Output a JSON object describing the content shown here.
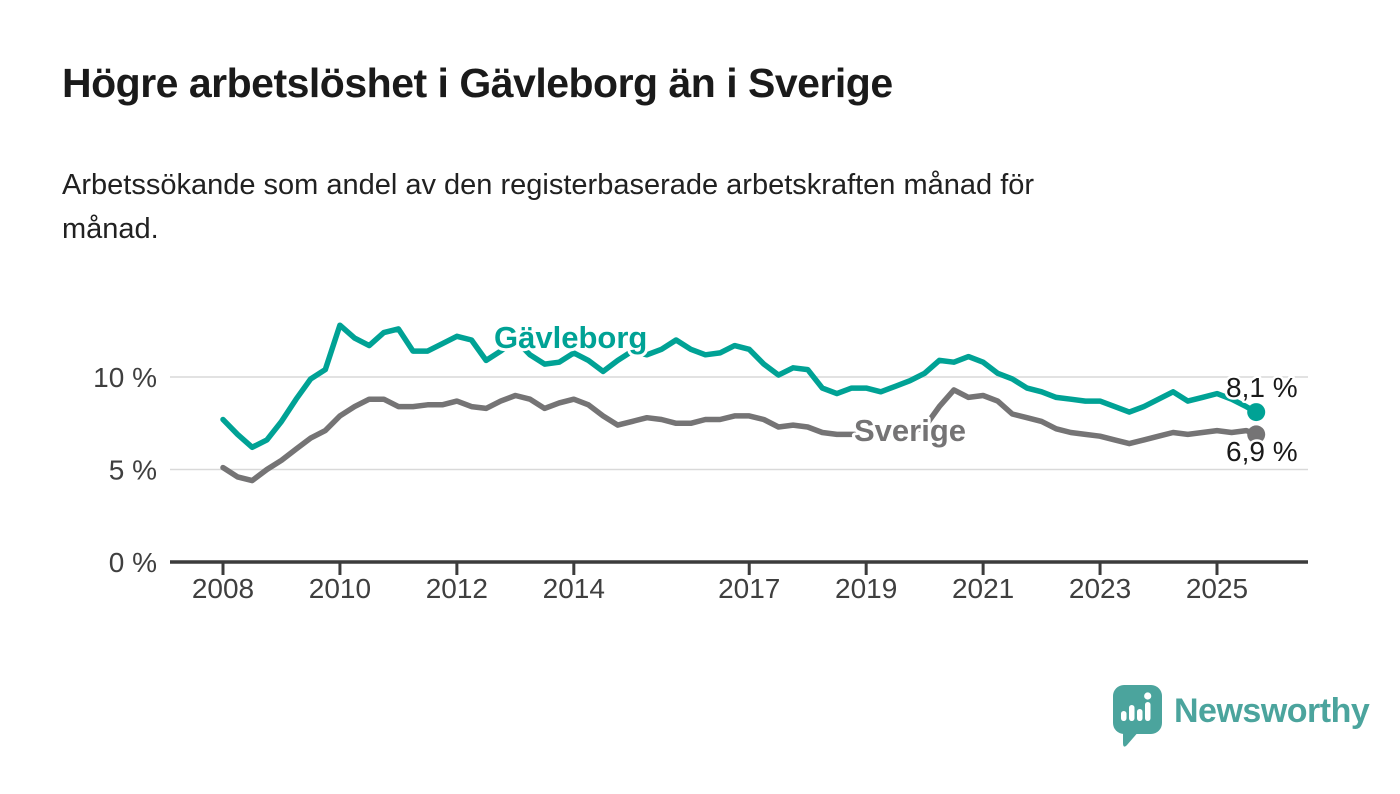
{
  "header": {
    "title": "Högre arbetslöshet i Gävleborg än i Sverige",
    "subtitle": "Arbetssökande som andel av den registerbaserade arbetskraften månad för månad."
  },
  "chart_data": {
    "type": "line",
    "x_unit": "decimal_year_monthly_series",
    "x_range_visible": [
      2007.1,
      2026.6
    ],
    "ylim": [
      0,
      13.5
    ],
    "grid": "horizontal gridlines at 5% and 10%, dark baseline at 0%",
    "legend_position": "inline labels beside lines, end-value labels at right",
    "yticks": [
      {
        "value": 0,
        "label": "0 %"
      },
      {
        "value": 5,
        "label": "5 %"
      },
      {
        "value": 10,
        "label": "10 %"
      }
    ],
    "gridlines": [
      5,
      10
    ],
    "xticks": [
      {
        "value": 2008,
        "label": "2008"
      },
      {
        "value": 2010,
        "label": "2010"
      },
      {
        "value": 2012,
        "label": "2012"
      },
      {
        "value": 2014,
        "label": "2014"
      },
      {
        "value": 2017,
        "label": "2017"
      },
      {
        "value": 2019,
        "label": "2019"
      },
      {
        "value": 2021,
        "label": "2021"
      },
      {
        "value": 2023,
        "label": "2023"
      },
      {
        "value": 2025,
        "label": "2025"
      }
    ],
    "x": [
      2008.0,
      2008.25,
      2008.5,
      2008.75,
      2009.0,
      2009.25,
      2009.5,
      2009.75,
      2010.0,
      2010.25,
      2010.5,
      2010.75,
      2011.0,
      2011.25,
      2011.5,
      2011.75,
      2012.0,
      2012.25,
      2012.5,
      2012.75,
      2013.0,
      2013.25,
      2013.5,
      2013.75,
      2014.0,
      2014.25,
      2014.5,
      2014.75,
      2015.0,
      2015.25,
      2015.5,
      2015.75,
      2016.0,
      2016.25,
      2016.5,
      2016.75,
      2017.0,
      2017.25,
      2017.5,
      2017.75,
      2018.0,
      2018.25,
      2018.5,
      2018.75,
      2019.0,
      2019.25,
      2019.5,
      2019.75,
      2020.0,
      2020.25,
      2020.5,
      2020.75,
      2021.0,
      2021.25,
      2021.5,
      2021.75,
      2022.0,
      2022.25,
      2022.5,
      2022.75,
      2023.0,
      2023.25,
      2023.5,
      2023.75,
      2024.0,
      2024.25,
      2024.5,
      2024.75,
      2025.0,
      2025.25,
      2025.5,
      2025.67
    ],
    "series": [
      {
        "name": "Gävleborg",
        "color": "#00a295",
        "end_label": "8,1 %",
        "last_value_pct": 8.1,
        "end_marker": "dot",
        "values": [
          7.7,
          6.9,
          6.2,
          6.6,
          7.6,
          8.8,
          9.9,
          10.4,
          12.8,
          12.1,
          11.7,
          12.4,
          12.6,
          11.4,
          11.4,
          11.8,
          12.2,
          12.0,
          10.9,
          11.4,
          12.0,
          11.2,
          10.7,
          10.8,
          11.3,
          10.9,
          10.3,
          10.9,
          11.4,
          11.2,
          11.5,
          12.0,
          11.5,
          11.2,
          11.3,
          11.7,
          11.5,
          10.7,
          10.1,
          10.5,
          10.4,
          9.4,
          9.1,
          9.4,
          9.4,
          9.2,
          9.5,
          9.8,
          10.2,
          10.9,
          10.8,
          11.1,
          10.8,
          10.2,
          9.9,
          9.4,
          9.2,
          8.9,
          8.8,
          8.7,
          8.7,
          8.4,
          8.1,
          8.4,
          8.8,
          9.2,
          8.7,
          8.9,
          9.1,
          8.8,
          8.4,
          8.1
        ]
      },
      {
        "name": "Sverige",
        "color": "#757475",
        "end_label": "6,9 %",
        "last_value_pct": 6.9,
        "end_marker": "dot",
        "values": [
          5.1,
          4.6,
          4.4,
          5.0,
          5.5,
          6.1,
          6.7,
          7.1,
          7.9,
          8.4,
          8.8,
          8.8,
          8.4,
          8.4,
          8.5,
          8.5,
          8.7,
          8.4,
          8.3,
          8.7,
          9.0,
          8.8,
          8.3,
          8.6,
          8.8,
          8.5,
          7.9,
          7.4,
          7.6,
          7.8,
          7.7,
          7.5,
          7.5,
          7.7,
          7.7,
          7.9,
          7.9,
          7.7,
          7.3,
          7.4,
          7.3,
          7.0,
          6.9,
          6.9,
          6.9,
          6.9,
          6.9,
          7.0,
          7.3,
          8.4,
          9.3,
          8.9,
          9.0,
          8.7,
          8.0,
          7.8,
          7.6,
          7.2,
          7.0,
          6.9,
          6.8,
          6.6,
          6.4,
          6.6,
          6.8,
          7.0,
          6.9,
          7.0,
          7.1,
          7.0,
          7.1,
          6.9
        ]
      }
    ]
  },
  "footer": {
    "brand": "Newsworthy",
    "brand_color": "#4ba49d",
    "logo_icon": "speech-bubble-with-bar-chart-and-exclamation"
  }
}
